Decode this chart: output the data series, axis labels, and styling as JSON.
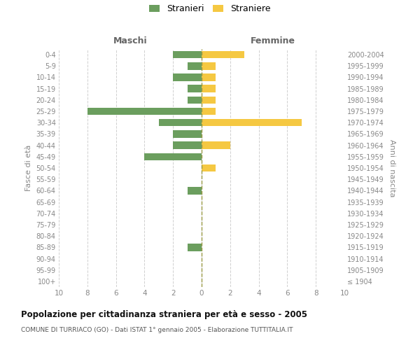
{
  "age_groups": [
    "100+",
    "95-99",
    "90-94",
    "85-89",
    "80-84",
    "75-79",
    "70-74",
    "65-69",
    "60-64",
    "55-59",
    "50-54",
    "45-49",
    "40-44",
    "35-39",
    "30-34",
    "25-29",
    "20-24",
    "15-19",
    "10-14",
    "5-9",
    "0-4"
  ],
  "birth_years": [
    "≤ 1904",
    "1905-1909",
    "1910-1914",
    "1915-1919",
    "1920-1924",
    "1925-1929",
    "1930-1934",
    "1935-1939",
    "1940-1944",
    "1945-1949",
    "1950-1954",
    "1955-1959",
    "1960-1964",
    "1965-1969",
    "1970-1974",
    "1975-1979",
    "1980-1984",
    "1985-1989",
    "1990-1994",
    "1995-1999",
    "2000-2004"
  ],
  "maschi": [
    0,
    0,
    0,
    1,
    0,
    0,
    0,
    0,
    1,
    0,
    0,
    4,
    2,
    2,
    3,
    8,
    1,
    1,
    2,
    1,
    2
  ],
  "femmine": [
    0,
    0,
    0,
    0,
    0,
    0,
    0,
    0,
    0,
    0,
    1,
    0,
    2,
    0,
    7,
    1,
    1,
    1,
    1,
    1,
    3
  ],
  "color_maschi": "#6b9e5e",
  "color_femmine": "#f5c842",
  "title": "Popolazione per cittadinanza straniera per età e sesso - 2005",
  "subtitle": "COMUNE DI TURRIACO (GO) - Dati ISTAT 1° gennaio 2005 - Elaborazione TUTTITALIA.IT",
  "xlabel_left": "Maschi",
  "xlabel_right": "Femmine",
  "ylabel_left": "Fasce di età",
  "ylabel_right": "Anni di nascita",
  "legend_stranieri": "Stranieri",
  "legend_straniere": "Straniere",
  "xlim": 10,
  "background_color": "#ffffff",
  "grid_color": "#d0d0d0"
}
